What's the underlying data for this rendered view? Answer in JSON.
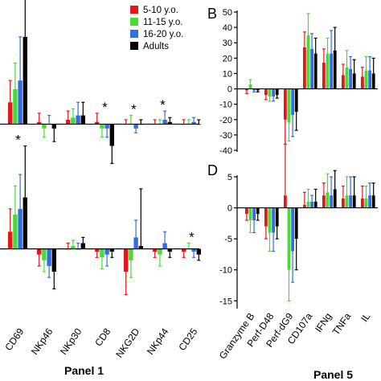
{
  "colors": {
    "5-10": "#e8141b",
    "11-15": "#4bd936",
    "16-20": "#2f6fe0",
    "adults": "#000000"
  },
  "legend": [
    {
      "key": "5-10",
      "label": "5-10 y.o."
    },
    {
      "key": "11-15",
      "label": "11-15 y.o."
    },
    {
      "key": "16-20",
      "label": "16-20 y.o."
    },
    {
      "key": "adults",
      "label": "Adults"
    }
  ],
  "panel_titles": {
    "left": "Panel 1",
    "right": "Panel 5"
  },
  "panel_letters": {
    "b": "B",
    "d": "D"
  },
  "chart_data": [
    {
      "id": "panel1-top",
      "type": "bar",
      "categories": [
        "CD69",
        "NKp46",
        "NKp30",
        "CD8",
        "NKG2D",
        "NKp44",
        "CD25"
      ],
      "series": [
        {
          "name": "5-10 y.o.",
          "values": [
            5,
            0.5,
            1,
            0.5,
            0,
            0,
            0
          ],
          "err": [
            5,
            2,
            2,
            2,
            1,
            1,
            1
          ]
        },
        {
          "name": "11-15 y.o.",
          "values": [
            8,
            -1,
            1.5,
            -1,
            0,
            0,
            0
          ],
          "err": [
            6,
            2,
            2,
            2,
            2,
            1,
            1
          ]
        },
        {
          "name": "16-20 y.o.",
          "values": [
            10,
            0,
            2,
            -1,
            -1,
            1,
            0.5
          ],
          "err": [
            10,
            2,
            3,
            2,
            1,
            2,
            1
          ]
        },
        {
          "name": "Adults",
          "values": [
            20,
            -1,
            2,
            -5,
            0,
            0.5,
            0
          ],
          "err": [
            18,
            3,
            3,
            4,
            1,
            1,
            1
          ]
        }
      ],
      "stars": [
        "CD8",
        "NKG2D",
        "NKp44"
      ],
      "ylim": [
        -6,
        22
      ]
    },
    {
      "id": "panel1-bottom",
      "type": "bar",
      "categories": [
        "CD69",
        "NKp46",
        "NKp30",
        "CD8",
        "NKG2D",
        "NKp44",
        "CD25"
      ],
      "series": [
        {
          "name": "5-10 y.o.",
          "values": [
            3,
            -1,
            0,
            -0.5,
            -4,
            -0.5,
            -0.5
          ],
          "err": [
            4,
            2,
            1,
            1,
            4,
            1,
            1
          ]
        },
        {
          "name": "11-15 y.o.",
          "values": [
            6,
            -2,
            0.5,
            -1.5,
            -2,
            -1,
            0
          ],
          "err": [
            5,
            2,
            1,
            2,
            3,
            2,
            1
          ]
        },
        {
          "name": "16-20 y.o.",
          "values": [
            7,
            -3,
            0,
            -1,
            2,
            1,
            -0.5
          ],
          "err": [
            6,
            2,
            1,
            2,
            3,
            2,
            1
          ]
        },
        {
          "name": "Adults",
          "values": [
            9,
            -4,
            1,
            -0.5,
            0.5,
            -0.5,
            -1
          ],
          "err": [
            9,
            3,
            1,
            1,
            10,
            1,
            1
          ]
        }
      ],
      "stars": [
        "CD69",
        "CD25"
      ],
      "ylim": [
        -12,
        14
      ]
    },
    {
      "id": "panel5-B",
      "type": "bar",
      "categories": [
        "Granzyme B",
        "Perf-D48",
        "Perf-dG9",
        "CD107a",
        "IFNg",
        "TNFa",
        "IL"
      ],
      "series": [
        {
          "name": "5-10 y.o.",
          "values": [
            -1,
            -4,
            -20,
            27,
            17,
            9,
            8
          ],
          "err": [
            2,
            3,
            16,
            10,
            9,
            7,
            6
          ]
        },
        {
          "name": "11-15 y.o.",
          "values": [
            3,
            -5,
            -22,
            35,
            23,
            14,
            12
          ],
          "err": [
            3,
            3,
            12,
            14,
            10,
            11,
            9
          ]
        },
        {
          "name": "16-20 y.o.",
          "values": [
            -1,
            -5,
            -17,
            26,
            23,
            13,
            12
          ],
          "err": [
            1,
            3,
            14,
            10,
            15,
            8,
            9
          ]
        },
        {
          "name": "Adults",
          "values": [
            -1,
            -4,
            -15,
            23,
            25,
            10,
            10
          ],
          "err": [
            1,
            2,
            12,
            10,
            15,
            9,
            10
          ]
        }
      ],
      "ylim": [
        -40,
        50
      ],
      "yticks": [
        -40,
        -30,
        -20,
        -10,
        0,
        10,
        20,
        30,
        40,
        50
      ]
    },
    {
      "id": "panel5-D",
      "type": "bar",
      "categories": [
        "Granzyme B",
        "Perf-D48",
        "Perf-dG9",
        "CD107a",
        "IFNg",
        "TNFa",
        "IL"
      ],
      "series": [
        {
          "name": "5-10 y.o.",
          "values": [
            -1,
            -3,
            2,
            0.5,
            2,
            1.5,
            1.5
          ],
          "err": [
            1,
            2,
            13,
            2,
            2,
            2,
            2
          ]
        },
        {
          "name": "11-15 y.o.",
          "values": [
            -2,
            -4,
            -10,
            1,
            2.5,
            2,
            1.5
          ],
          "err": [
            2,
            3,
            5,
            2,
            3,
            3,
            2
          ]
        },
        {
          "name": "16-20 y.o.",
          "values": [
            -2,
            -4,
            -7,
            1,
            2,
            2,
            2
          ],
          "err": [
            2,
            3,
            5,
            1,
            3,
            3,
            2
          ]
        },
        {
          "name": "Adults",
          "values": [
            -1,
            -3,
            -5,
            1,
            3,
            2,
            2
          ],
          "err": [
            1,
            2,
            5,
            2,
            3,
            3,
            2
          ]
        }
      ],
      "ylim": [
        -16,
        5
      ],
      "yticks": [
        -15,
        -10,
        -5,
        0,
        5
      ]
    }
  ]
}
